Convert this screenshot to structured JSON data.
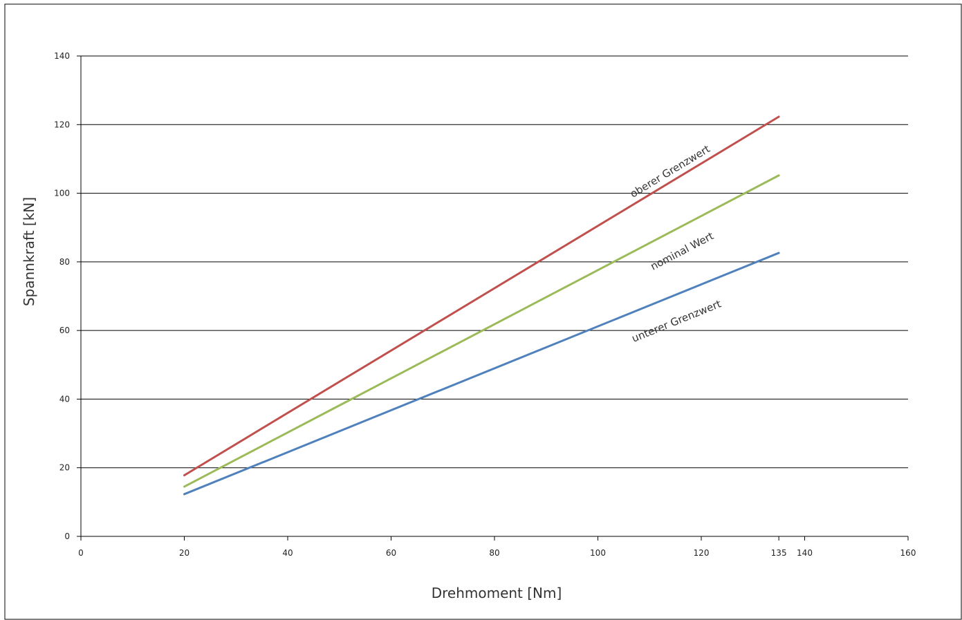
{
  "chart_data": {
    "type": "line",
    "title": "",
    "xlabel": "Drehmoment [Nm]",
    "ylabel": "Spannkraft [kN]",
    "xlim": [
      0,
      160
    ],
    "ylim": [
      0,
      140
    ],
    "x_ticks": [
      "0",
      "20",
      "40",
      "60",
      "80",
      "100",
      "120",
      "135",
      "140",
      "160"
    ],
    "y_ticks": [
      "0",
      "20",
      "40",
      "60",
      "80",
      "100",
      "120",
      "140"
    ],
    "grid": true,
    "legend": "none",
    "series": [
      {
        "name": "oberer Grenzwert",
        "color": "#c0504d",
        "x": [
          20,
          135
        ],
        "y": [
          17.8,
          122.3
        ]
      },
      {
        "name": "nominal Wert",
        "color": "#9bbb59",
        "x": [
          20,
          135
        ],
        "y": [
          14.5,
          105.2
        ]
      },
      {
        "name": "unterer Grenzwert",
        "color": "#4f81bd",
        "x": [
          20,
          135
        ],
        "y": [
          12.3,
          82.6
        ]
      }
    ]
  }
}
